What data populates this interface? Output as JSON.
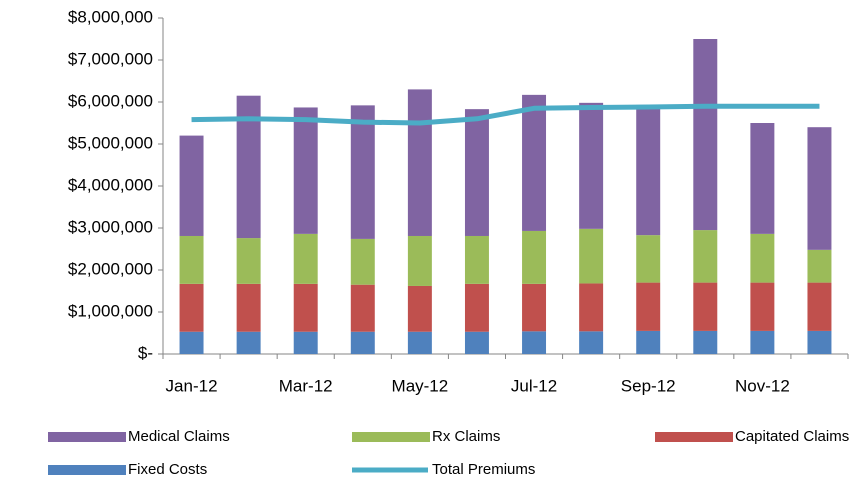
{
  "chart_data": {
    "type": "bar",
    "categories": [
      "Jan-12",
      null,
      "Mar-12",
      null,
      "May-12",
      null,
      "Jul-12",
      null,
      "Sep-12",
      null,
      "Nov-12",
      null
    ],
    "series": [
      {
        "name": "Medical Claims",
        "color": "#8064a2",
        "values": [
          2390000,
          3390000,
          3010000,
          3180000,
          3490000,
          3020000,
          3240000,
          3000000,
          3100000,
          4550000,
          2640000,
          2920000
        ]
      },
      {
        "name": "Rx Claims",
        "color": "#9bbb59",
        "values": [
          1140000,
          1090000,
          1190000,
          1090000,
          1190000,
          1140000,
          1260000,
          1300000,
          1130000,
          1250000,
          1160000,
          780000
        ]
      },
      {
        "name": "Capitated Claims",
        "color": "#c0504d",
        "values": [
          1140000,
          1140000,
          1140000,
          1120000,
          1090000,
          1140000,
          1130000,
          1140000,
          1150000,
          1150000,
          1150000,
          1150000
        ]
      },
      {
        "name": "Fixed Costs",
        "color": "#4f81bd",
        "values": [
          530000,
          530000,
          530000,
          530000,
          530000,
          530000,
          540000,
          540000,
          550000,
          550000,
          550000,
          550000
        ]
      },
      {
        "name": "Total Premiums",
        "color": "#4bacc6",
        "type": "line",
        "values": [
          5580000,
          5600000,
          5580000,
          5520000,
          5500000,
          5600000,
          5850000,
          5870000,
          5880000,
          5900000,
          5900000,
          5900000
        ]
      }
    ],
    "stacked": true,
    "ylim": [
      0,
      8000000
    ],
    "yticks": [
      {
        "value": 0,
        "label": "$-"
      },
      {
        "value": 1000000,
        "label": "$1,000,000"
      },
      {
        "value": 2000000,
        "label": "$2,000,000"
      },
      {
        "value": 3000000,
        "label": "$3,000,000"
      },
      {
        "value": 4000000,
        "label": "$4,000,000"
      },
      {
        "value": 5000000,
        "label": "$5,000,000"
      },
      {
        "value": 6000000,
        "label": "$6,000,000"
      },
      {
        "value": 7000000,
        "label": "$7,000,000"
      },
      {
        "value": 8000000,
        "label": "$8,000,000"
      }
    ],
    "grid": false,
    "legend": "bottom"
  }
}
